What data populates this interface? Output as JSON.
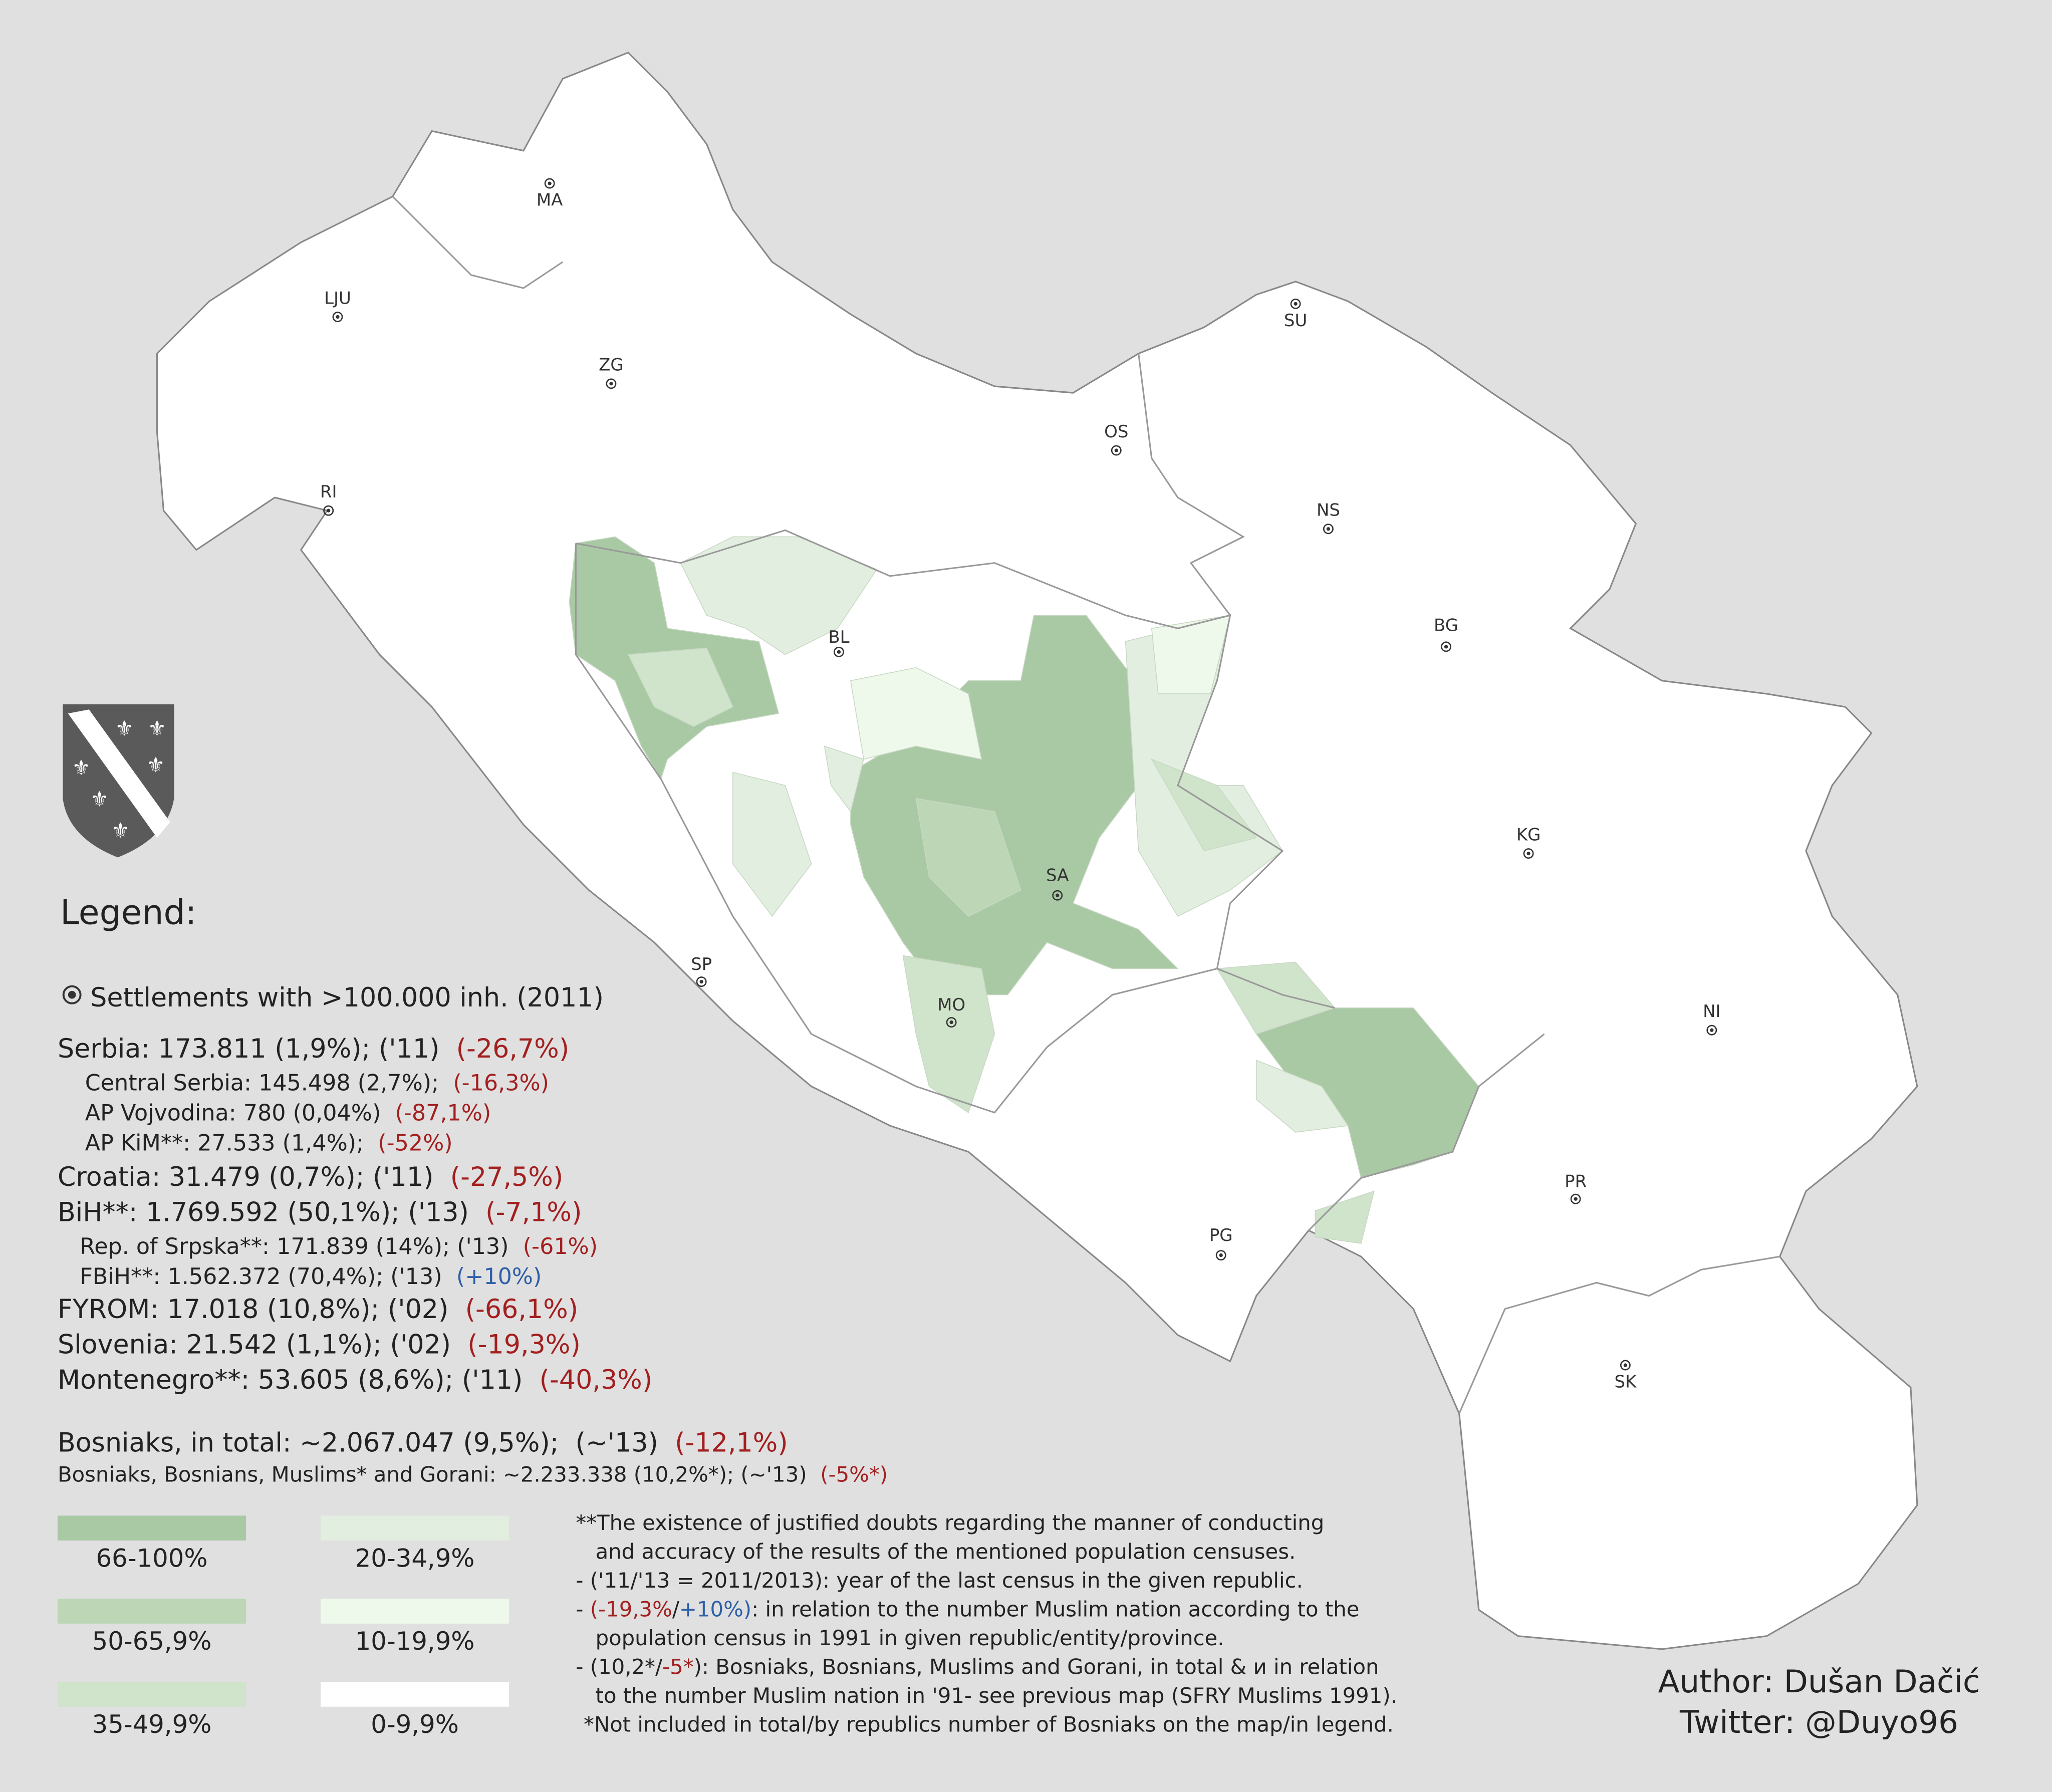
{
  "cities": [
    "MA",
    "LJU",
    "ZG",
    "RI",
    "OS",
    "SU",
    "NS",
    "BG",
    "BL",
    "KG",
    "SA",
    "SP",
    "MO",
    "NI",
    "PR",
    "PG",
    "SK"
  ],
  "legend": {
    "title": "Legend:",
    "settlements": "Settlements with >100.000 inh. (2011)"
  },
  "stats": [
    {
      "text": "Serbia: 173.811 (1,9%); ('11)",
      "change": "(-26,7%)"
    },
    {
      "text": "Central Serbia: 145.498 (2,7%);",
      "change": "(-16,3%)"
    },
    {
      "text": "AP Vojvodina: 780 (0,04%)",
      "change": "(-87,1%)"
    },
    {
      "text": "AP KiM**: 27.533 (1,4%);",
      "change": "(-52%)"
    },
    {
      "text": "Croatia: 31.479 (0,7%); ('11)",
      "change": "(-27,5%)"
    },
    {
      "text": "BiH**: 1.769.592 (50,1%); ('13)",
      "change": "(-7,1%)"
    },
    {
      "text": "Rep. of Srpska**: 171.839 (14%); ('13)",
      "change": "(-61%)"
    },
    {
      "text": "FBiH**: 1.562.372 (70,4%); ('13)",
      "change": "(+10%)"
    },
    {
      "text": "FYROM: 17.018 (10,8%); ('02)",
      "change": "(-66,1%)"
    },
    {
      "text": "Slovenia: 21.542 (1,1%); ('02)",
      "change": "(-19,3%)"
    },
    {
      "text": "Montenegro**: 53.605 (8,6%); ('11)",
      "change": "(-40,3%)"
    }
  ],
  "totals": [
    {
      "text": "Bosniaks, in total: ~2.067.047 (9,5%);  (~'13)",
      "change": "(-12,1%)"
    },
    {
      "text": "Bosniaks, Bosnians, Muslims* and Gorani: ~2.233.338 (10,2%*); (~'13)",
      "change": "(-5%*)"
    }
  ],
  "bins": [
    {
      "label": "66-100%",
      "color": "#a9c9a4"
    },
    {
      "label": "50-65,9%",
      "color": "#bcd6b6"
    },
    {
      "label": "35-49,9%",
      "color": "#d0e3cb"
    },
    {
      "label": "20-34,9%",
      "color": "#e2eedf"
    },
    {
      "label": "10-19,9%",
      "color": "#eef8eb"
    },
    {
      "label": "0-9,9%",
      "color": "#ffffff"
    }
  ],
  "notes": [
    [
      "**The existence of justified doubts regarding the manner of conducting"
    ],
    [
      "and accuracy of the results of the mentioned population censuses."
    ],
    [
      "- ('11/'13 = 2011/2013): year of the last census in the given republic."
    ],
    [
      "- ",
      "(-19,3%",
      "/",
      "+10%)",
      ": in relation to the number Muslim nation according to the"
    ],
    [
      "population census in 1991 in given republic/entity/province."
    ],
    [
      "- (10,2*/",
      "-5*",
      "): Bosniaks, Bosnians, Muslims and Gorani, in total & и in relation"
    ],
    [
      "to the number Muslim nation in '91- see previous map (SFRY Muslims 1991)."
    ],
    [
      "*Not included in total/by republics number of Bosniaks on the map/in legend."
    ]
  ],
  "author": [
    "Author: Dušan Dačić",
    "Twitter: @Duyo96"
  ]
}
